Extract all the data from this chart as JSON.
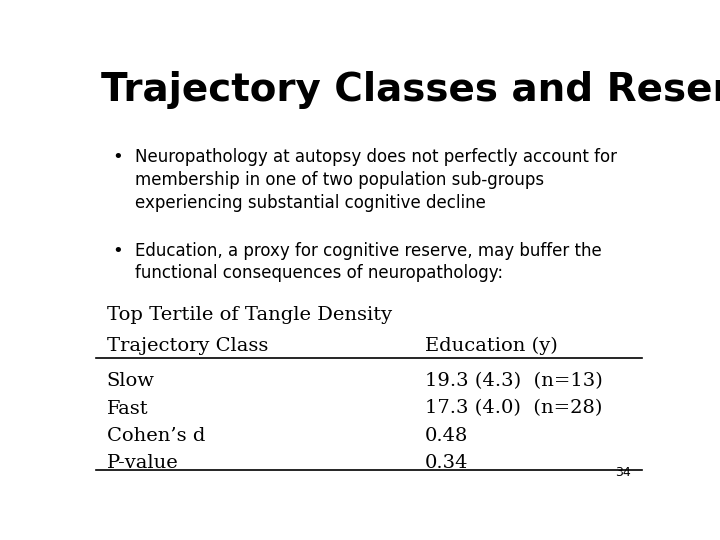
{
  "title": "Trajectory Classes and Reserve",
  "bullet1_line1": "Neuropathology at autopsy does not perfectly account for",
  "bullet1_line2": "membership in one of two population sub-groups",
  "bullet1_line3": "experiencing substantial cognitive decline",
  "bullet2_line1": "Education, a proxy for cognitive reserve, may buffer the",
  "bullet2_line2": "functional consequences of neuropathology:",
  "table_header1": "Top Tertile of Tangle Density",
  "table_col1_header": "Trajectory Class",
  "table_col2_header": "Education (y)",
  "table_rows": [
    [
      "Slow",
      "19.3 (4.3)  (n=13)"
    ],
    [
      "Fast",
      "17.3 (4.0)  (n=28)"
    ],
    [
      "Cohen’s d",
      "0.48"
    ],
    [
      "P-value",
      "0.34"
    ]
  ],
  "page_number": "34",
  "background_color": "#ffffff",
  "title_fontsize": 28,
  "body_fontsize": 12,
  "table_header_fontsize": 14,
  "table_body_fontsize": 14
}
